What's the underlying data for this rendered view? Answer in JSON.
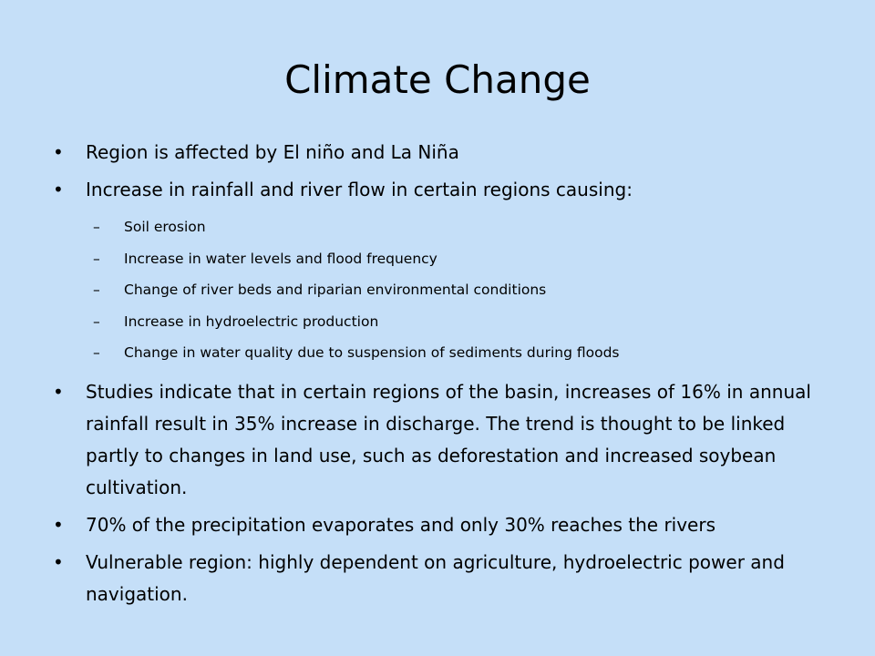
{
  "slide": {
    "title": "Climate Change",
    "bullets": [
      {
        "text": "Region is affected by El niño and La Niña"
      },
      {
        "text": "Increase in rainfall and river flow in certain regions causing:"
      },
      {
        "text": "Studies indicate that in certain regions of the basin, increases of 16% in annual rainfall result in 35% increase in discharge.  The trend is thought to be linked partly to changes in land use, such as deforestation and increased soybean cultivation."
      },
      {
        "text": "70% of the precipitation evaporates and only 30% reaches the rivers"
      },
      {
        "text": "Vulnerable region: highly dependent on agriculture, hydroelectric power and navigation."
      }
    ],
    "sub_bullets": [
      {
        "text": "Soil erosion"
      },
      {
        "text": "Increase in water levels and flood frequency"
      },
      {
        "text": "Change of river beds and riparian environmental conditions"
      },
      {
        "text": "Increase in hydroelectric production"
      },
      {
        "text": "Change in water quality due to suspension of sediments during floods"
      }
    ],
    "bullet_symbol": "•",
    "sub_bullet_symbol": "–"
  }
}
